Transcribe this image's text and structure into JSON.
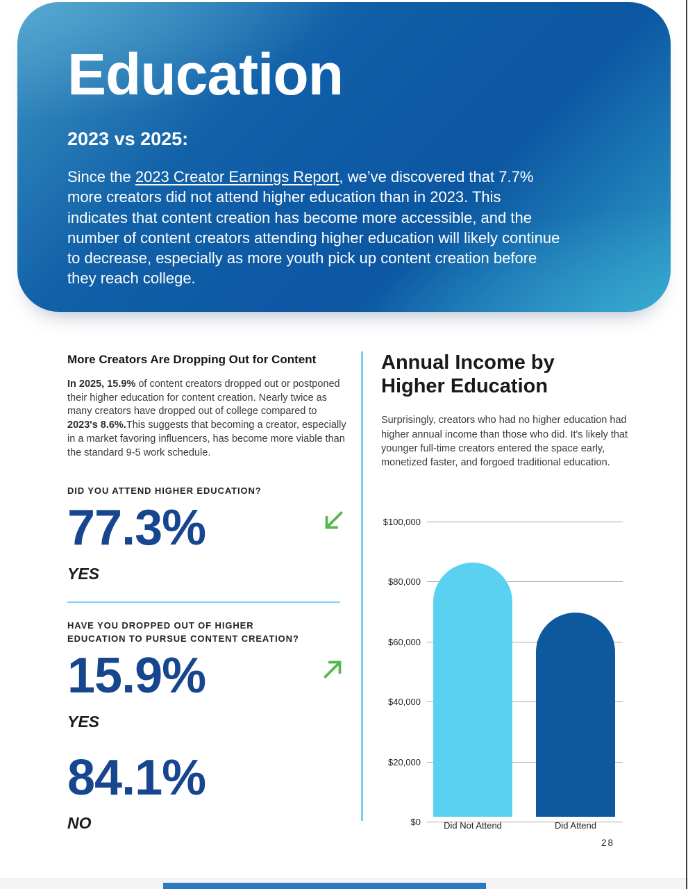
{
  "header": {
    "title": "Education",
    "subtitle": "2023 vs 2025:",
    "paragraph_prefix": "Since the ",
    "link_text": "2023 Creator Earnings Report",
    "paragraph_suffix": ", we’ve discovered that 7.7% more creators did not attend higher education than in 2023. This indicates that content creation has become more accessible, and the number of content creators attending higher education will likely continue to decrease, especially as more youth pick up content creation before they reach college."
  },
  "left_column": {
    "heading": "More Creators Are Dropping Out for Content",
    "paragraph_bold1": "In 2025, 15.9%",
    "paragraph_text1": " of content creators dropped out or postponed their higher education for content creation. Nearly twice as many creators have dropped out of college compared to ",
    "paragraph_bold2": "2023's 8.6%.",
    "paragraph_text2": "This suggests that becoming a creator, especially in a market favoring influencers, has become more viable than the standard 9-5 work schedule.",
    "question1": "DID YOU ATTEND HIGHER EDUCATION?",
    "stat1_value": "77.3%",
    "stat1_label": "YES",
    "stat1_trend": "down",
    "question2": "HAVE YOU DROPPED OUT OF HIGHER EDUCATION TO PURSUE CONTENT CREATION?",
    "stat2_value": "15.9%",
    "stat2_label": "YES",
    "stat2_trend": "up",
    "stat3_value": "84.1%",
    "stat3_label": "NO"
  },
  "right_column": {
    "title": "Annual Income by Higher Education",
    "description": "Surprisingly, creators who had no higher education had higher annual income than those who did. It's likely that younger full-time creators entered the space early, monetized faster, and forgoed traditional education."
  },
  "chart_data": {
    "type": "bar",
    "title": "Annual Income by Higher Education",
    "categories": [
      "Did Not Attend",
      "Did Attend"
    ],
    "values": [
      84700,
      68000
    ],
    "bar_colors": [
      "#5bd1f1",
      "#0e589e"
    ],
    "xlabel": "",
    "ylabel": "",
    "ylim": [
      0,
      100000
    ],
    "yticks": [
      "$100,000",
      "$80,000",
      "$60,000",
      "$40,000",
      "$20,000",
      "$0"
    ],
    "grid": true,
    "legend": false
  },
  "page": {
    "number": "28"
  },
  "colors": {
    "header_gradient_light": "#3f94c4",
    "header_gradient_dark": "#0c56a2",
    "header_gradient_teal": "#2f9fca",
    "stat_navy": "#18468e",
    "arrow_green": "#53b84e",
    "divider_cyan": "#6fd2ef",
    "bar_light_blue": "#5bd1f1",
    "bar_dark_blue": "#0e589e",
    "gridline_gray": "#a8a8a8",
    "bottom_accent_blue": "#2d79c0"
  }
}
